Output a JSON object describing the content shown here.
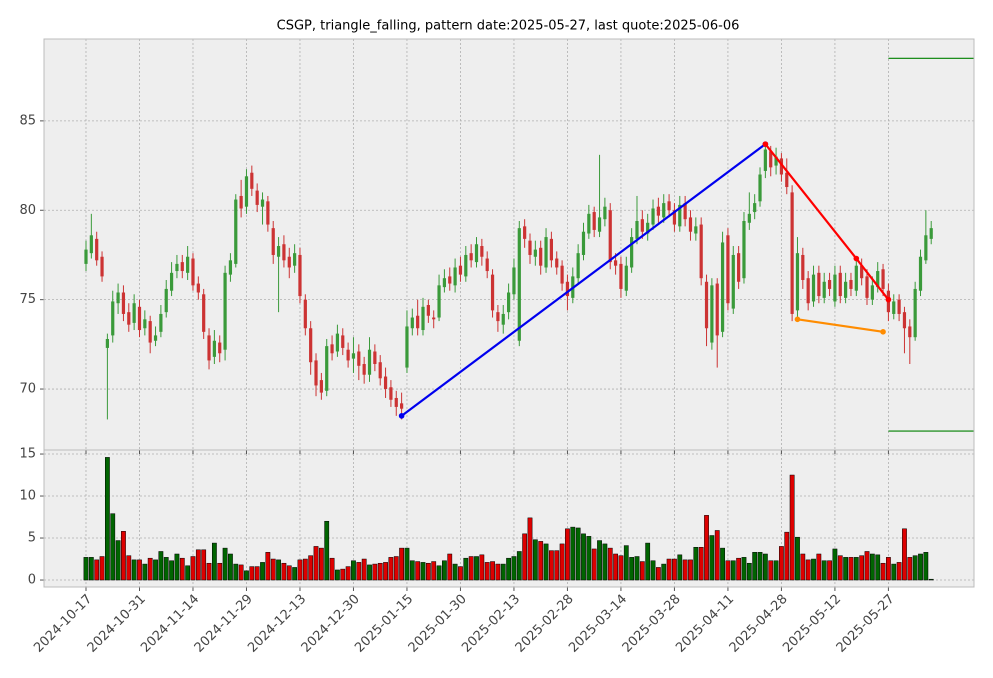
{
  "chart_data": {
    "type": "candlestick",
    "title": "CSGP, triangle_falling, pattern date:2025-05-27, last quote:2025-06-06",
    "categories": [
      "2024-10-17",
      "2024-10-18",
      "2024-10-21",
      "2024-10-22",
      "2024-10-23",
      "2024-10-24",
      "2024-10-25",
      "2024-10-28",
      "2024-10-29",
      "2024-10-30",
      "2024-10-31",
      "2024-11-01",
      "2024-11-04",
      "2024-11-05",
      "2024-11-06",
      "2024-11-07",
      "2024-11-08",
      "2024-11-11",
      "2024-11-12",
      "2024-11-13",
      "2024-11-14",
      "2024-11-15",
      "2024-11-18",
      "2024-11-19",
      "2024-11-20",
      "2024-11-21",
      "2024-11-22",
      "2024-11-25",
      "2024-11-26",
      "2024-11-27",
      "2024-11-29",
      "2024-12-02",
      "2024-12-03",
      "2024-12-04",
      "2024-12-05",
      "2024-12-06",
      "2024-12-09",
      "2024-12-10",
      "2024-12-11",
      "2024-12-12",
      "2024-12-13",
      "2024-12-16",
      "2024-12-17",
      "2024-12-18",
      "2024-12-19",
      "2024-12-20",
      "2024-12-23",
      "2024-12-24",
      "2024-12-26",
      "2024-12-27",
      "2024-12-30",
      "2024-12-31",
      "2025-01-02",
      "2025-01-03",
      "2025-01-06",
      "2025-01-07",
      "2025-01-08",
      "2025-01-10",
      "2025-01-13",
      "2025-01-14",
      "2025-01-15",
      "2025-01-16",
      "2025-01-17",
      "2025-01-21",
      "2025-01-22",
      "2025-01-23",
      "2025-01-24",
      "2025-01-27",
      "2025-01-28",
      "2025-01-29",
      "2025-01-30",
      "2025-01-31",
      "2025-02-03",
      "2025-02-04",
      "2025-02-05",
      "2025-02-06",
      "2025-02-07",
      "2025-02-10",
      "2025-02-11",
      "2025-02-12",
      "2025-02-13",
      "2025-02-14",
      "2025-02-18",
      "2025-02-19",
      "2025-02-20",
      "2025-02-21",
      "2025-02-24",
      "2025-02-25",
      "2025-02-26",
      "2025-02-27",
      "2025-02-28",
      "2025-03-03",
      "2025-03-04",
      "2025-03-05",
      "2025-03-06",
      "2025-03-07",
      "2025-03-10",
      "2025-03-11",
      "2025-03-12",
      "2025-03-13",
      "2025-03-14",
      "2025-03-17",
      "2025-03-18",
      "2025-03-19",
      "2025-03-20",
      "2025-03-21",
      "2025-03-24",
      "2025-03-25",
      "2025-03-26",
      "2025-03-27",
      "2025-03-28",
      "2025-03-31",
      "2025-04-01",
      "2025-04-02",
      "2025-04-03",
      "2025-04-04",
      "2025-04-07",
      "2025-04-08",
      "2025-04-09",
      "2025-04-10",
      "2025-04-11",
      "2025-04-14",
      "2025-04-15",
      "2025-04-16",
      "2025-04-17",
      "2025-04-21",
      "2025-04-22",
      "2025-04-23",
      "2025-04-24",
      "2025-04-25",
      "2025-04-28",
      "2025-04-29",
      "2025-04-30",
      "2025-05-01",
      "2025-05-02",
      "2025-05-05",
      "2025-05-06",
      "2025-05-07",
      "2025-05-08",
      "2025-05-09",
      "2025-05-12",
      "2025-05-13",
      "2025-05-14",
      "2025-05-15",
      "2025-05-16",
      "2025-05-19",
      "2025-05-20",
      "2025-05-21",
      "2025-05-22",
      "2025-05-23",
      "2025-05-27",
      "2025-05-28",
      "2025-05-29",
      "2025-05-30",
      "2025-06-02",
      "2025-06-03",
      "2025-06-04",
      "2025-06-05",
      "2025-06-06"
    ],
    "open": [
      77.0,
      77.6,
      78.4,
      77.4,
      72.3,
      73.0,
      74.8,
      75.4,
      74.3,
      73.7,
      74.6,
      73.4,
      73.8,
      72.7,
      73.2,
      74.3,
      75.5,
      76.6,
      77.1,
      76.5,
      77.3,
      75.9,
      75.3,
      73.0,
      71.8,
      72.6,
      72.2,
      76.4,
      77.0,
      80.8,
      80.2,
      82.1,
      81.1,
      80.2,
      80.5,
      79.0,
      77.4,
      78.1,
      77.4,
      76.9,
      77.5,
      75.0,
      73.4,
      71.6,
      70.5,
      69.9,
      72.5,
      72.1,
      73.0,
      72.2,
      71.7,
      72.1,
      71.4,
      70.8,
      72.1,
      71.5,
      70.7,
      70.1,
      69.5,
      69.2,
      71.2,
      73.4,
      74.1,
      73.3,
      74.7,
      74.0,
      74.0,
      75.7,
      76.3,
      75.8,
      76.9,
      76.3,
      77.6,
      77.1,
      78.0,
      77.3,
      76.4,
      74.3,
      73.6,
      74.3,
      75.3,
      72.7,
      79.1,
      78.3,
      77.4,
      77.9,
      76.8,
      78.4,
      77.3,
      76.9,
      76.0,
      75.1,
      76.2,
      77.5,
      78.7,
      79.9,
      78.8,
      79.5,
      80.0,
      77.2,
      77.0,
      75.5,
      76.8,
      78.4,
      79.5,
      78.7,
      79.2,
      80.2,
      79.6,
      80.5,
      80.0,
      79.1,
      80.4,
      79.6,
      78.7,
      79.2,
      76.0,
      72.6,
      75.9,
      73.2,
      78.6,
      74.5,
      77.6,
      76.2,
      79.3,
      79.9,
      80.5,
      82.2,
      83.3,
      82.5,
      82.9,
      82.1,
      81.0,
      74.4,
      77.5,
      76.2,
      74.9,
      76.5,
      75.1,
      76.1,
      74.9,
      76.5,
      75.1,
      76.1,
      75.5,
      76.9,
      76.3,
      75.0,
      75.7,
      76.7,
      75.5,
      74.2,
      75.0,
      74.3,
      73.5,
      72.9,
      75.5,
      77.2,
      78.4
    ],
    "high": [
      78.3,
      79.8,
      78.8,
      77.7,
      73.1,
      75.5,
      75.9,
      75.8,
      74.8,
      75.3,
      75.0,
      74.4,
      74.1,
      73.5,
      74.7,
      76.1,
      77.1,
      77.5,
      77.5,
      78.0,
      77.6,
      76.3,
      75.6,
      73.4,
      73.3,
      73.0,
      76.9,
      77.6,
      80.9,
      81.7,
      82.3,
      82.5,
      81.5,
      81.0,
      80.8,
      79.4,
      78.5,
      78.6,
      77.9,
      78.1,
      77.9,
      75.3,
      73.8,
      72.0,
      70.9,
      72.8,
      73.0,
      73.6,
      73.4,
      72.6,
      72.9,
      72.5,
      71.8,
      72.9,
      72.5,
      71.9,
      71.2,
      70.5,
      69.9,
      69.8,
      74.4,
      74.5,
      75.0,
      75.1,
      75.0,
      74.4,
      76.4,
      76.7,
      76.8,
      77.3,
      77.4,
      78.0,
      78.1,
      78.5,
      78.4,
      77.7,
      76.7,
      74.7,
      74.7,
      75.9,
      77.3,
      79.4,
      79.5,
      78.7,
      78.3,
      78.3,
      79.0,
      78.8,
      77.7,
      77.2,
      76.4,
      76.8,
      78.1,
      79.3,
      80.3,
      80.2,
      83.1,
      80.7,
      80.4,
      77.6,
      77.4,
      77.4,
      79.0,
      80.8,
      80.0,
      79.8,
      80.6,
      80.7,
      80.9,
      80.9,
      80.4,
      80.8,
      80.8,
      80.0,
      79.6,
      79.6,
      76.4,
      76.2,
      76.2,
      78.8,
      79.0,
      78.0,
      78.0,
      79.9,
      81.0,
      80.9,
      82.4,
      83.7,
      83.6,
      83.5,
      83.2,
      82.9,
      81.4,
      78.5,
      77.9,
      76.6,
      76.9,
      76.9,
      76.5,
      76.5,
      76.9,
      76.9,
      76.5,
      76.5,
      77.4,
      77.3,
      76.7,
      76.3,
      77.1,
      77.0,
      75.9,
      75.3,
      75.3,
      74.6,
      73.9,
      76.0,
      77.8,
      80.0,
      79.4
    ],
    "low": [
      76.6,
      77.3,
      76.9,
      76.0,
      68.3,
      72.6,
      74.2,
      73.8,
      73.2,
      73.3,
      72.9,
      73.0,
      72.0,
      72.4,
      72.9,
      74.0,
      75.2,
      76.2,
      76.2,
      76.1,
      75.5,
      75.0,
      72.8,
      71.1,
      71.4,
      71.5,
      71.6,
      76.0,
      76.8,
      79.6,
      79.8,
      80.8,
      79.9,
      79.2,
      78.8,
      77.0,
      74.3,
      76.8,
      76.2,
      76.5,
      74.8,
      73.0,
      70.8,
      69.6,
      69.4,
      69.6,
      71.6,
      71.8,
      71.9,
      71.2,
      70.9,
      70.5,
      70.3,
      70.4,
      71.0,
      70.2,
      69.5,
      69.0,
      68.5,
      68.3,
      70.9,
      73.0,
      73.0,
      73.0,
      73.7,
      73.4,
      73.8,
      75.4,
      75.5,
      75.4,
      76.0,
      76.0,
      76.8,
      76.8,
      76.9,
      76.2,
      74.0,
      73.2,
      73.1,
      73.9,
      75.0,
      72.4,
      77.9,
      77.0,
      76.9,
      76.4,
      76.5,
      76.8,
      76.4,
      75.5,
      74.4,
      74.8,
      75.9,
      77.2,
      78.4,
      78.5,
      78.5,
      79.1,
      76.7,
      76.4,
      75.1,
      75.2,
      76.5,
      78.1,
      78.4,
      78.3,
      78.9,
      79.3,
      79.3,
      79.6,
      78.8,
      78.8,
      79.1,
      78.3,
      78.3,
      75.8,
      72.4,
      72.2,
      71.2,
      72.9,
      74.4,
      74.2,
      75.6,
      75.9,
      78.9,
      79.5,
      80.2,
      81.8,
      81.9,
      82.0,
      81.6,
      80.9,
      73.8,
      74.0,
      75.6,
      74.4,
      74.6,
      74.8,
      74.8,
      75.2,
      74.6,
      74.8,
      74.8,
      75.2,
      75.2,
      75.8,
      74.7,
      74.7,
      75.4,
      75.2,
      73.8,
      73.9,
      73.8,
      72.0,
      71.4,
      72.7,
      75.2,
      77.0,
      78.1
    ],
    "close": [
      77.8,
      78.6,
      77.2,
      76.3,
      72.8,
      74.9,
      75.4,
      74.2,
      73.6,
      74.8,
      73.3,
      73.9,
      72.6,
      73.0,
      74.2,
      75.6,
      76.5,
      77.0,
      76.6,
      77.4,
      75.8,
      75.4,
      73.2,
      71.6,
      72.7,
      72.0,
      76.5,
      77.2,
      80.6,
      80.1,
      81.9,
      81.2,
      80.3,
      80.6,
      79.2,
      77.5,
      78.0,
      77.2,
      76.8,
      77.6,
      75.2,
      73.4,
      71.5,
      70.2,
      69.8,
      72.4,
      72.0,
      73.1,
      72.3,
      71.6,
      72.0,
      71.3,
      70.8,
      72.2,
      71.4,
      70.6,
      70.0,
      69.4,
      69.0,
      68.9,
      73.5,
      74.0,
      73.4,
      74.6,
      74.1,
      73.9,
      75.8,
      76.2,
      75.9,
      76.8,
      76.4,
      77.5,
      77.2,
      78.1,
      77.4,
      76.6,
      74.4,
      73.8,
      74.2,
      75.4,
      76.8,
      79.0,
      78.4,
      77.5,
      77.8,
      76.9,
      78.5,
      77.2,
      76.8,
      75.9,
      75.2,
      76.3,
      77.6,
      78.8,
      79.8,
      78.9,
      79.6,
      80.2,
      77.1,
      76.9,
      75.6,
      76.9,
      78.5,
      79.4,
      78.8,
      79.3,
      80.1,
      79.7,
      80.4,
      80.0,
      79.2,
      80.3,
      79.5,
      78.8,
      79.1,
      76.2,
      73.4,
      75.8,
      73.0,
      78.2,
      74.8,
      77.5,
      76.0,
      79.4,
      79.8,
      80.4,
      82.0,
      83.4,
      82.4,
      83.0,
      82.0,
      81.3,
      74.2,
      77.6,
      76.1,
      74.8,
      76.4,
      75.2,
      76.0,
      75.6,
      76.4,
      75.2,
      76.0,
      75.6,
      76.9,
      76.2,
      75.1,
      75.8,
      76.6,
      75.6,
      74.3,
      74.9,
      74.2,
      73.4,
      72.9,
      75.6,
      77.4,
      78.6,
      79.0
    ],
    "volume": [
      2.7,
      2.7,
      2.4,
      2.8,
      14.6,
      7.9,
      4.7,
      5.8,
      2.9,
      2.4,
      2.4,
      1.9,
      2.6,
      2.4,
      3.4,
      2.7,
      2.3,
      3.1,
      2.6,
      1.7,
      2.8,
      3.6,
      3.6,
      2.0,
      4.4,
      2.0,
      3.8,
      3.1,
      1.9,
      1.8,
      1.1,
      1.6,
      1.6,
      2.1,
      3.3,
      2.5,
      2.4,
      2.0,
      1.7,
      1.5,
      2.4,
      2.5,
      2.9,
      4.0,
      3.8,
      7.0,
      2.6,
      1.2,
      1.3,
      1.6,
      2.3,
      2.1,
      2.5,
      1.8,
      1.9,
      2.0,
      2.1,
      2.7,
      2.8,
      3.8,
      3.8,
      2.3,
      2.2,
      2.1,
      2.0,
      2.2,
      1.7,
      2.3,
      3.1,
      1.9,
      1.6,
      2.6,
      2.8,
      2.8,
      3.0,
      2.1,
      2.2,
      1.9,
      1.9,
      2.6,
      2.8,
      3.4,
      5.5,
      7.4,
      4.8,
      4.6,
      4.3,
      3.5,
      3.5,
      4.3,
      6.1,
      6.3,
      6.2,
      5.5,
      5.2,
      3.7,
      4.7,
      4.3,
      3.8,
      3.1,
      2.9,
      4.1,
      2.7,
      2.8,
      2.2,
      4.4,
      2.3,
      1.5,
      1.9,
      2.5,
      2.5,
      3.0,
      2.4,
      2.4,
      3.9,
      3.9,
      7.7,
      5.3,
      5.9,
      3.8,
      2.3,
      2.3,
      2.6,
      2.7,
      2.0,
      3.3,
      3.3,
      3.1,
      2.3,
      2.3,
      4.0,
      5.7,
      12.5,
      5.1,
      3.1,
      2.4,
      2.5,
      3.1,
      2.3,
      2.3,
      3.7,
      2.9,
      2.7,
      2.7,
      2.7,
      2.9,
      3.4,
      3.1,
      3.0,
      2.0,
      2.7,
      1.9,
      2.1,
      6.1,
      2.7,
      2.9,
      3.1,
      3.3,
      0.1
    ],
    "up_color": "#3a9a3a",
    "down_color": "#cc3333",
    "volume_up_color": "#006400",
    "volume_down_color": "#dd0000",
    "xlim": [
      -7.85,
      166
    ],
    "ylim": [
      66.59,
      89.58
    ],
    "yticks": [
      70,
      75,
      80,
      85
    ],
    "volume_ylim": [
      -0.83,
      15.48
    ],
    "volume_yticks": [
      0,
      5,
      10,
      15
    ],
    "xticks": [
      "2024-10-17",
      "2024-10-31",
      "2024-11-14",
      "2024-11-29",
      "2024-12-13",
      "2024-12-30",
      "2025-01-15",
      "2025-01-30",
      "2025-02-13",
      "2025-02-28",
      "2025-03-14",
      "2025-03-28",
      "2025-04-11",
      "2025-04-28",
      "2025-05-12",
      "2025-05-27"
    ],
    "grid": true,
    "lines": [
      {
        "color": "#0000ee",
        "points": [
          [
            "2025-01-14",
            68.5
          ],
          [
            "2025-04-23",
            83.7
          ]
        ]
      },
      {
        "color": "#ff0000",
        "points": [
          [
            "2025-04-23",
            83.7
          ],
          [
            "2025-05-16",
            77.3
          ],
          [
            "2025-05-27",
            75.0
          ]
        ]
      },
      {
        "color": "#ff8c00",
        "points": [
          [
            "2025-05-01",
            73.9
          ],
          [
            "2025-05-23",
            73.2
          ]
        ]
      }
    ],
    "levels": [
      88.5,
      67.65
    ],
    "level_color": "#008000",
    "level_start": "2025-05-27"
  }
}
